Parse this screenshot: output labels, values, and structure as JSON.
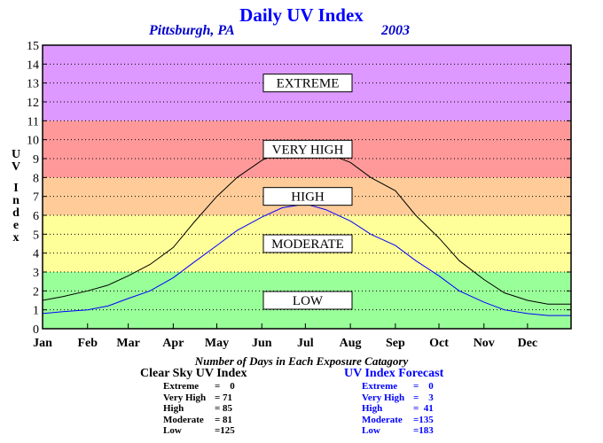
{
  "header": {
    "title": "Daily UV Index",
    "location": "Pittsburgh, PA",
    "year": "2003"
  },
  "chart_data": {
    "type": "line",
    "title": "Daily UV Index",
    "ylabel": "UV Index",
    "xlabel": "",
    "ylim": [
      0,
      15
    ],
    "xlim": [
      1,
      365
    ],
    "y_ticks": [
      0,
      1,
      2,
      3,
      4,
      5,
      6,
      7,
      8,
      9,
      10,
      11,
      12,
      13,
      14,
      15
    ],
    "x_tick_labels": [
      "Jan",
      "Feb",
      "Mar",
      "Apr",
      "May",
      "Jun",
      "Jul",
      "Aug",
      "Sep",
      "Oct",
      "Nov",
      "Dec"
    ],
    "grid": true,
    "bands": [
      {
        "label": "LOW",
        "from": 0,
        "to": 3,
        "color": "#99ff99"
      },
      {
        "label": "MODERATE",
        "from": 3,
        "to": 6,
        "color": "#ffff99"
      },
      {
        "label": "HIGH",
        "from": 6,
        "to": 8,
        "color": "#ffcc99"
      },
      {
        "label": "VERY HIGH",
        "from": 8,
        "to": 11,
        "color": "#ff9999"
      },
      {
        "label": "EXTREME",
        "from": 11,
        "to": 15,
        "color": "#dd99ff"
      }
    ],
    "series": [
      {
        "color": "#000000",
        "x": [
          1,
          15,
          32,
          46,
          60,
          75,
          91,
          105,
          121,
          135,
          152,
          166,
          182,
          196,
          213,
          227,
          244,
          258,
          274,
          288,
          305,
          319,
          335,
          349,
          365
        ],
        "values": [
          1.5,
          1.7,
          2.0,
          2.3,
          2.8,
          3.4,
          4.3,
          5.6,
          7.0,
          8.0,
          8.9,
          9.4,
          9.6,
          9.3,
          8.8,
          8.0,
          7.3,
          6.0,
          4.8,
          3.6,
          2.6,
          1.9,
          1.5,
          1.3,
          1.3
        ]
      },
      {
        "color": "#0000ff",
        "x": [
          1,
          15,
          32,
          46,
          60,
          75,
          91,
          105,
          121,
          135,
          152,
          166,
          182,
          196,
          213,
          227,
          244,
          258,
          274,
          288,
          305,
          319,
          335,
          349,
          365
        ],
        "values": [
          0.8,
          0.9,
          1.0,
          1.2,
          1.6,
          2.0,
          2.7,
          3.5,
          4.4,
          5.2,
          5.9,
          6.4,
          6.6,
          6.3,
          5.7,
          5.0,
          4.4,
          3.6,
          2.8,
          2.0,
          1.4,
          1.0,
          0.8,
          0.7,
          0.7
        ]
      }
    ],
    "subtitle": "Number of Days in Each Exposure Catagory",
    "tables": [
      {
        "title": "Clear Sky UV Index",
        "rows": [
          {
            "label": "Extreme",
            "value": "=    0"
          },
          {
            "label": "Very High",
            "value": "= 71"
          },
          {
            "label": "High",
            "value": "= 85"
          },
          {
            "label": "Moderate",
            "value": "= 81"
          },
          {
            "label": "Low",
            "value": "=125"
          }
        ]
      },
      {
        "title": "UV Index Forecast",
        "rows": [
          {
            "label": "Extreme",
            "value": "=    0"
          },
          {
            "label": "Very High",
            "value": "=    3"
          },
          {
            "label": "High",
            "value": "=  41"
          },
          {
            "label": "Moderate",
            "value": "=135"
          },
          {
            "label": "Low",
            "value": "=183"
          }
        ]
      }
    ]
  }
}
